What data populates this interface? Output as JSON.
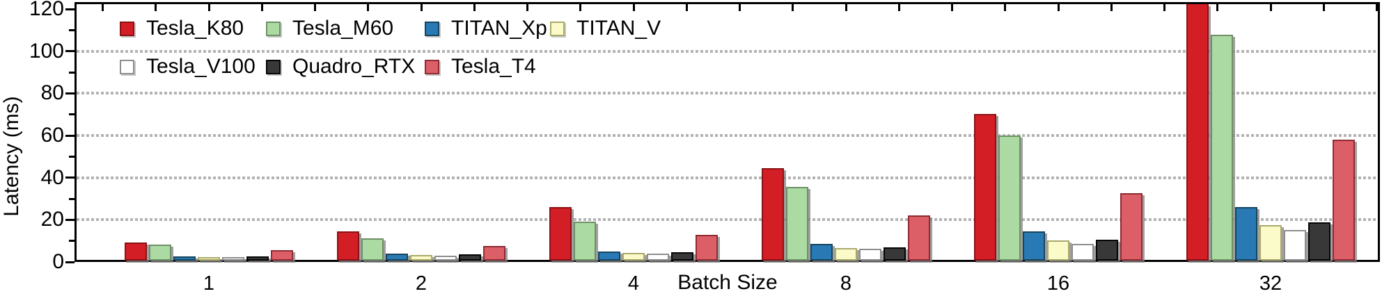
{
  "chart_data": {
    "type": "bar",
    "title": "",
    "xlabel": "Batch Size",
    "ylabel": "Latency (ms)",
    "categories": [
      "1",
      "2",
      "4",
      "8",
      "16",
      "32"
    ],
    "series": [
      {
        "name": "Tesla_K80",
        "fill": "#d21e24",
        "edge": "#8a1216",
        "values": [
          8.5,
          14.0,
          25.5,
          44.0,
          69.5,
          124.0
        ]
      },
      {
        "name": "Tesla_M60",
        "fill": "#abdba3",
        "edge": "#6f8f66",
        "values": [
          7.5,
          10.5,
          18.5,
          35.0,
          59.5,
          107.0
        ]
      },
      {
        "name": "TITAN_Xp",
        "fill": "#2979b5",
        "edge": "#16455e",
        "values": [
          2.0,
          3.2,
          4.2,
          8.0,
          14.0,
          25.5
        ]
      },
      {
        "name": "TITAN_V",
        "fill": "#fbfbc9",
        "edge": "#a9a96b",
        "values": [
          1.7,
          2.5,
          3.5,
          6.0,
          9.5,
          16.8
        ]
      },
      {
        "name": "Tesla_V100",
        "fill": "#ffffff",
        "edge": "#8d8d8d",
        "values": [
          1.5,
          2.3,
          3.2,
          5.5,
          8.0,
          14.5
        ]
      },
      {
        "name": "Quadro_RTX",
        "fill": "#383838",
        "edge": "#050505",
        "values": [
          2.0,
          2.9,
          4.0,
          6.2,
          9.8,
          18.0
        ]
      },
      {
        "name": "Tesla_T4",
        "fill": "#dc5f68",
        "edge": "#8e2b33",
        "values": [
          5.0,
          7.0,
          12.3,
          21.5,
          32.0,
          57.3
        ]
      }
    ],
    "note": "Tesla_K80 bar at batch size 32 is clipped by the top of the axes (value exceeds visible range)",
    "ylim": [
      0,
      123.3
    ],
    "yticks": [
      0,
      20,
      40,
      60,
      80,
      100,
      120
    ],
    "grid": "horizontal dotted gray lines at 20, 40, 60, 80, 100",
    "grid_color": "#b3b3b3",
    "legend_position": "upper left, no frame, two rows",
    "legend_rows": [
      [
        "Tesla_K80",
        "Tesla_M60",
        "TITAN_Xp",
        "TITAN_V"
      ],
      [
        "Tesla_V100",
        "Quadro_RTX",
        "Tesla_T4"
      ]
    ]
  }
}
